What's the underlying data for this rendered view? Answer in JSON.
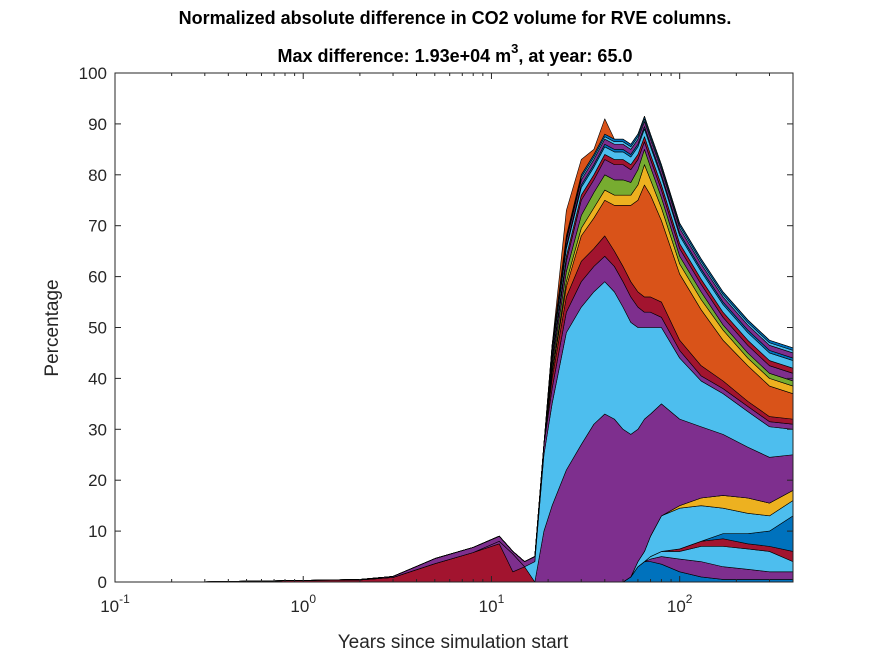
{
  "chart_data": {
    "type": "area",
    "stacked": true,
    "title": "Normalized absolute difference in CO2 volume for RVE columns.",
    "subtitle": {
      "prefix": "Max difference: 1.93e+04 m",
      "superscript": "3",
      "suffix": ", at year: 65.0"
    },
    "xlabel": "Years since simulation start",
    "ylabel": "Percentage",
    "xscale": "log",
    "xlim": [
      0.1,
      400
    ],
    "ylim": [
      0,
      100
    ],
    "grid": false,
    "legend": "none",
    "yticks": [
      "0",
      "10",
      "20",
      "30",
      "40",
      "50",
      "60",
      "70",
      "80",
      "90",
      "100"
    ],
    "xticks": [
      {
        "value": 0.1,
        "base": "10",
        "exp": "-1"
      },
      {
        "value": 1,
        "base": "10",
        "exp": "0"
      },
      {
        "value": 10,
        "base": "10",
        "exp": "1"
      },
      {
        "value": 100,
        "base": "10",
        "exp": "2"
      }
    ],
    "x": [
      0.1,
      0.3,
      1,
      2,
      3,
      5,
      8,
      11,
      13,
      15,
      17,
      19,
      21,
      25,
      30,
      35,
      40,
      45,
      50,
      55,
      60,
      65,
      70,
      80,
      100,
      130,
      170,
      230,
      300,
      400
    ],
    "series": [
      {
        "color": "#0072BD",
        "values": [
          0,
          0,
          0,
          0,
          0,
          0,
          0,
          0,
          0,
          0,
          0,
          0,
          0,
          0,
          0,
          0,
          0,
          0,
          0,
          1,
          3,
          4,
          4,
          3.5,
          2,
          1,
          0.5,
          0.5,
          0.5,
          0.5
        ]
      },
      {
        "color": "#7E2F8E",
        "values": [
          0,
          0,
          0,
          0,
          0,
          0,
          0,
          0,
          0,
          0,
          0,
          0,
          0,
          0,
          0,
          0,
          0,
          0,
          0,
          0,
          0,
          0,
          0.5,
          1.5,
          2.5,
          3,
          2.5,
          2,
          1.5,
          1.5
        ]
      },
      {
        "color": "#4DBEEE",
        "values": [
          0,
          0,
          0,
          0,
          0,
          0,
          0,
          0,
          0,
          0,
          0,
          0,
          0,
          0,
          0,
          0,
          0,
          0,
          0,
          0,
          0,
          0,
          0.5,
          1,
          1.5,
          3,
          4,
          4,
          4,
          2
        ]
      },
      {
        "color": "#A2142F",
        "values": [
          0,
          0,
          0,
          0,
          0,
          0,
          0,
          0,
          0,
          0,
          0,
          0,
          0,
          0,
          0,
          0,
          0,
          0,
          0,
          0,
          0,
          0,
          0,
          0,
          0.5,
          1,
          1.5,
          1,
          1,
          2
        ]
      },
      {
        "color": "#0072BD",
        "values": [
          0,
          0,
          0,
          0,
          0,
          0,
          0,
          0,
          0,
          0,
          0,
          0,
          0,
          0,
          0,
          0,
          0,
          0,
          0,
          0,
          0,
          0,
          0,
          0,
          0,
          0,
          1,
          2,
          3,
          7
        ]
      },
      {
        "color": "#4DBEEE",
        "values": [
          0,
          0,
          0,
          0,
          0,
          0,
          0,
          0,
          0,
          0,
          0,
          0,
          0,
          0,
          0,
          0,
          0,
          0,
          0,
          0,
          1,
          2,
          4,
          7,
          8,
          7,
          5,
          4,
          3,
          3
        ]
      },
      {
        "color": "#EDB120",
        "values": [
          0,
          0,
          0,
          0,
          0,
          0,
          0,
          0,
          0,
          0,
          0,
          0,
          0,
          0,
          0,
          0,
          0,
          0,
          0,
          0,
          0,
          0,
          0,
          0,
          0.5,
          1.5,
          2.5,
          3,
          2.5,
          2
        ]
      },
      {
        "color": "#A2142F",
        "values": [
          0,
          0.05,
          0.3,
          0.4,
          0.9,
          3.6,
          5.8,
          7.5,
          2,
          3,
          0,
          0,
          0,
          0,
          0,
          0,
          0,
          0,
          0,
          0,
          0,
          0,
          0,
          0,
          0,
          0,
          0,
          0,
          0,
          0
        ]
      },
      {
        "color": "#7E2F8E",
        "values": [
          0,
          0,
          0,
          0,
          0,
          0,
          0,
          0.5,
          3.5,
          0,
          0,
          10,
          15,
          22,
          27,
          31,
          33,
          32,
          30,
          28,
          26,
          26,
          24,
          22,
          17,
          14,
          12,
          10,
          9,
          7
        ]
      },
      {
        "color": "#4DBEEE",
        "values": [
          0,
          0,
          0,
          0,
          0,
          0,
          0,
          0,
          0,
          0,
          4,
          15,
          20,
          27,
          27,
          26,
          26,
          25,
          24,
          22,
          20,
          18,
          17,
          15,
          12,
          9,
          8,
          7,
          6,
          5
        ]
      },
      {
        "color": "#7E2F8E",
        "values": [
          0,
          0,
          0,
          0.1,
          0.2,
          1,
          1,
          1,
          0.5,
          1,
          1,
          2,
          3,
          4,
          5,
          5,
          5,
          5,
          5,
          5,
          4,
          3,
          3,
          2,
          1.5,
          1,
          1,
          1,
          1,
          1
        ]
      },
      {
        "color": "#A2142F",
        "values": [
          0,
          0,
          0,
          0,
          0,
          0,
          0,
          0,
          0,
          0,
          0,
          0,
          2,
          3,
          4,
          3.5,
          4,
          3,
          3,
          3,
          3,
          3,
          3,
          3,
          2,
          2,
          1.5,
          1,
          1,
          1
        ]
      },
      {
        "color": "#D95319",
        "values": [
          0,
          0,
          0,
          0,
          0,
          0,
          0,
          0,
          0,
          0,
          0,
          0,
          1,
          2,
          5,
          6,
          7,
          9,
          12,
          15,
          18,
          22,
          20,
          16,
          13,
          11,
          8,
          7,
          6,
          5
        ]
      },
      {
        "color": "#EDB120",
        "values": [
          0,
          0,
          0,
          0,
          0,
          0,
          0,
          0,
          0,
          0,
          0,
          0,
          0.5,
          1,
          1.5,
          2,
          2,
          2,
          2,
          2,
          3,
          4,
          3,
          2.5,
          2,
          2,
          2,
          1.5,
          1.5,
          1.5
        ]
      },
      {
        "color": "#77AC30",
        "values": [
          0,
          0,
          0,
          0,
          0,
          0,
          0,
          0,
          0,
          0,
          0,
          0,
          1,
          2,
          2.5,
          3,
          3,
          3,
          3,
          2.5,
          3,
          3,
          2.5,
          2,
          1.5,
          1.5,
          1,
          1,
          1,
          1
        ]
      },
      {
        "color": "#7E2F8E",
        "values": [
          0,
          0,
          0,
          0,
          0,
          0,
          0,
          0,
          0,
          0,
          0,
          0,
          1,
          2,
          3,
          2.5,
          3,
          3,
          3,
          2.5,
          2,
          1.5,
          1.5,
          1.5,
          1.5,
          1.5,
          1.5,
          1.5,
          1.5,
          1.5
        ]
      },
      {
        "color": "#A2142F",
        "values": [
          0,
          0,
          0,
          0,
          0,
          0,
          0,
          0,
          0,
          0,
          0,
          0,
          0.5,
          1,
          1,
          1,
          1,
          1,
          1,
          1,
          1,
          1,
          1,
          1,
          1,
          1,
          1,
          1,
          1,
          1
        ]
      },
      {
        "color": "#4DBEEE",
        "values": [
          0,
          0,
          0,
          0,
          0,
          0,
          0,
          0,
          0,
          0,
          0,
          0,
          1,
          1.5,
          1.5,
          1.5,
          1.5,
          1.5,
          1.5,
          1.5,
          1.5,
          1.5,
          1.5,
          1.5,
          1.5,
          1.5,
          1.5,
          1.5,
          1.5,
          1.5
        ]
      },
      {
        "color": "#0072BD",
        "values": [
          0,
          0,
          0,
          0,
          0,
          0,
          0,
          0,
          0,
          0,
          0,
          0,
          0.5,
          0.5,
          0.5,
          0.5,
          0.5,
          0.5,
          0.5,
          0.5,
          0.5,
          0.5,
          0.5,
          0.5,
          0.5,
          0.5,
          0.5,
          0.5,
          0.5,
          0.5
        ]
      },
      {
        "color": "#7E2F8E",
        "values": [
          0,
          0,
          0,
          0,
          0,
          0,
          0,
          0,
          0,
          0,
          0,
          0,
          1,
          1,
          1,
          1,
          1,
          1,
          1,
          1,
          1,
          1,
          1,
          1,
          1,
          1,
          1,
          1,
          1,
          1
        ]
      },
      {
        "color": "#4DBEEE",
        "values": [
          0,
          0,
          0,
          0,
          0,
          0,
          0,
          0,
          0,
          0,
          0,
          0,
          0,
          0.5,
          0.5,
          0.5,
          0.5,
          0.5,
          0.5,
          0.5,
          0.5,
          0.5,
          0.5,
          0.5,
          0.5,
          0.5,
          0.5,
          0.5,
          0.5,
          0.5
        ]
      },
      {
        "color": "#0072BD",
        "values": [
          0,
          0,
          0,
          0,
          0,
          0,
          0,
          0,
          0,
          0,
          0,
          0,
          0,
          0.5,
          0.5,
          0.5,
          0.5,
          0.5,
          0.5,
          0.5,
          0.5,
          0.5,
          0.5,
          0.5,
          0.5,
          0.5,
          0.5,
          0.5,
          0.5,
          0.5
        ]
      },
      {
        "color": "#D95319",
        "values": [
          0,
          0,
          0,
          0,
          0,
          0,
          0,
          0,
          0,
          0,
          0,
          0,
          0,
          5,
          3,
          1,
          3,
          0,
          0,
          0,
          0,
          0,
          0,
          0,
          0,
          0,
          0,
          0,
          0,
          0
        ]
      }
    ]
  }
}
